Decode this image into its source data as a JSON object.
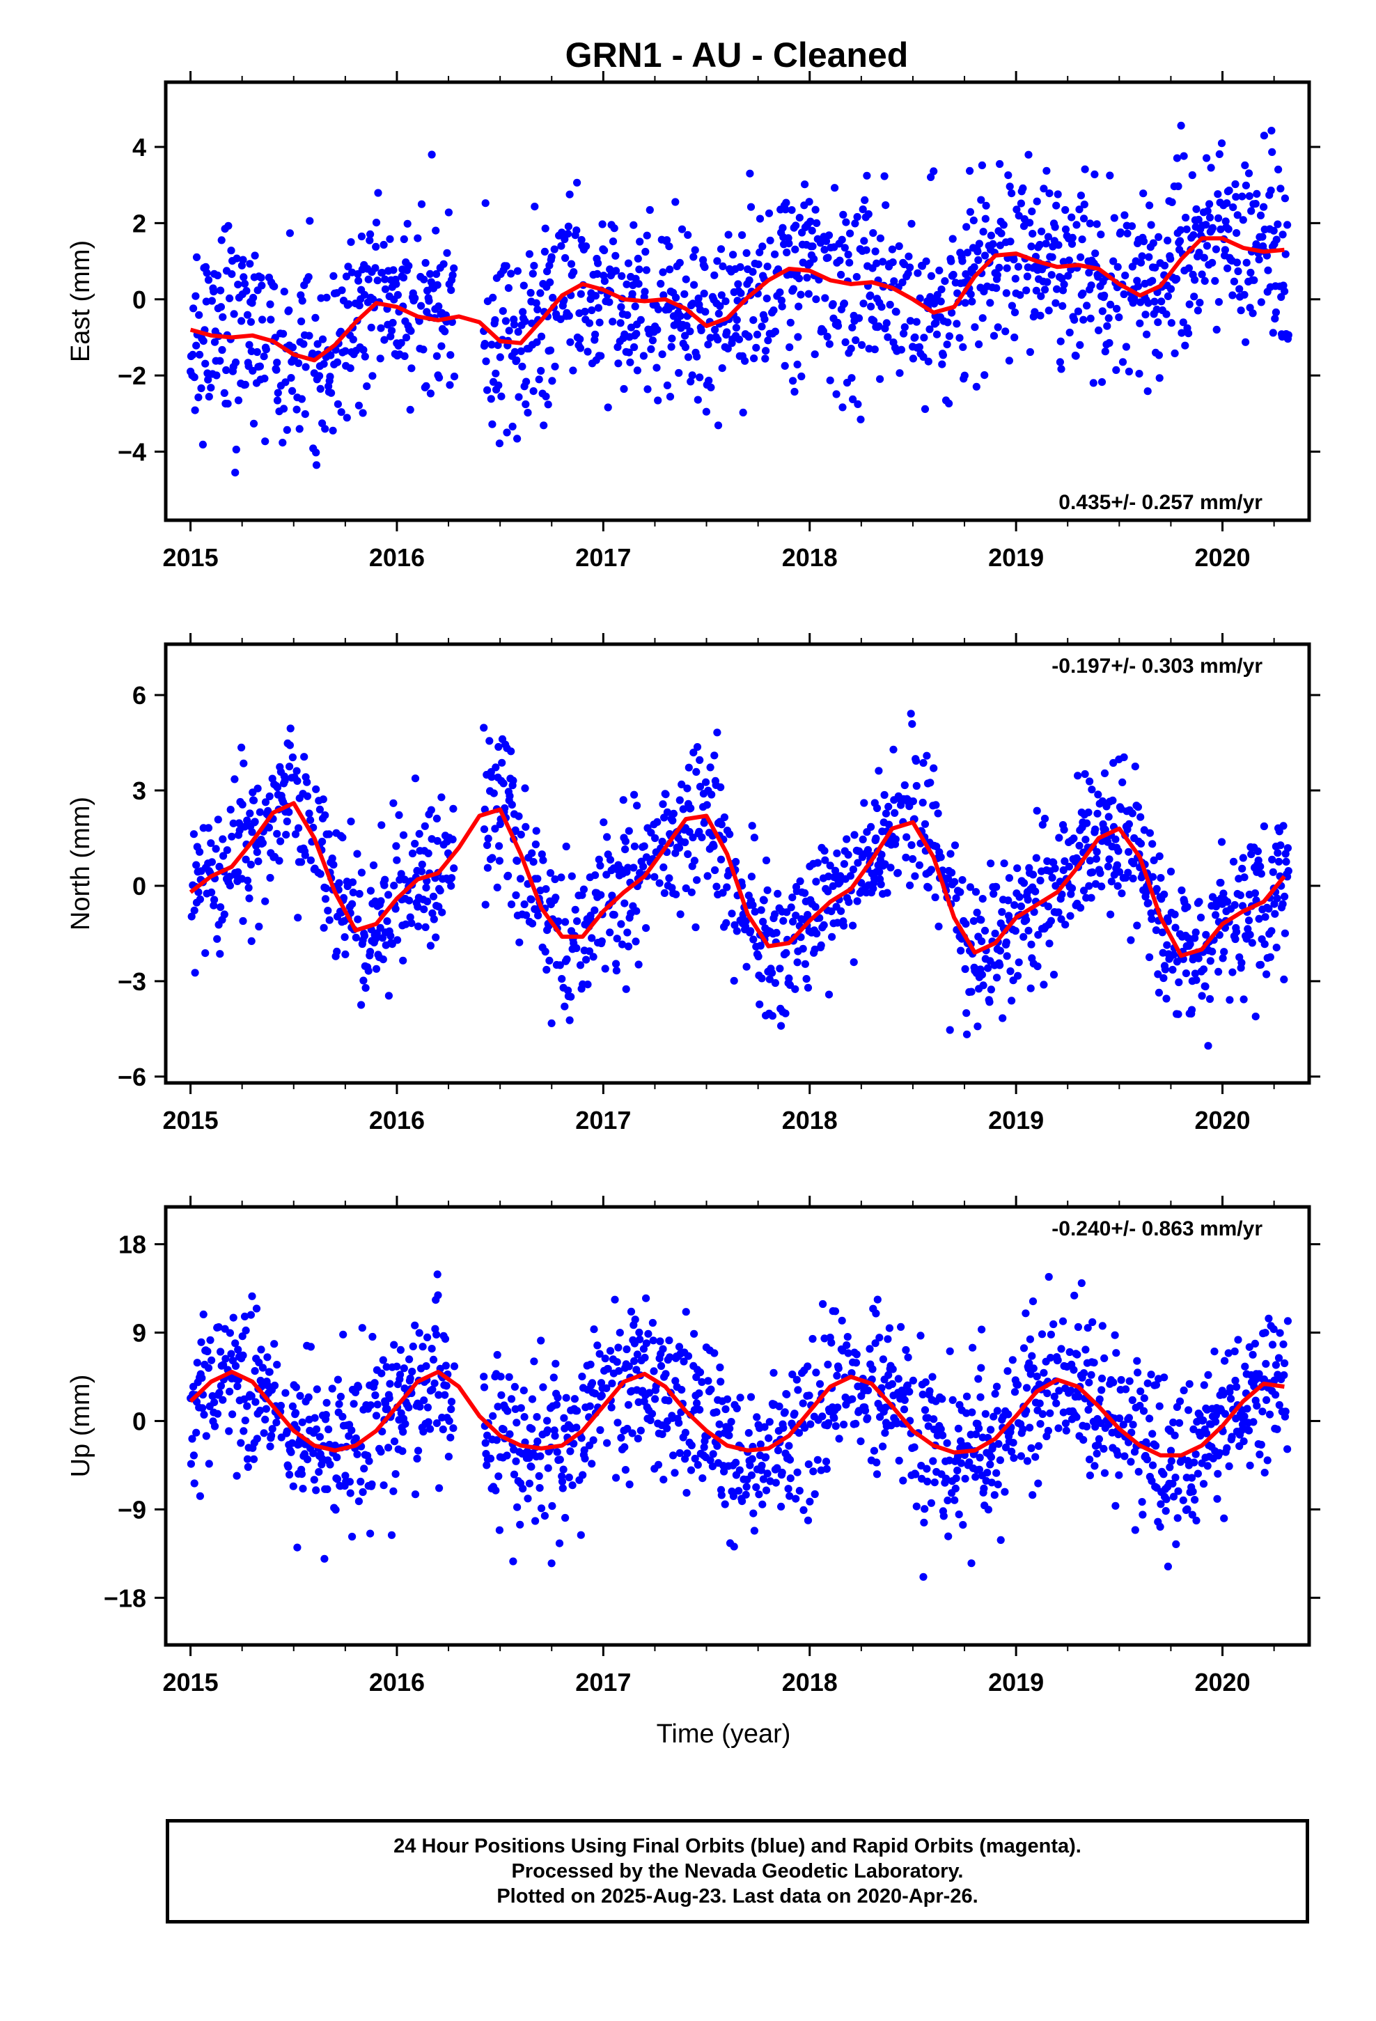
{
  "title": "GRN1  - AU - Cleaned",
  "colors": {
    "points": "#0000ff",
    "fit": "#ff0000",
    "frame": "#000000"
  },
  "footer": {
    "line1": "24 Hour Positions Using Final Orbits (blue) and Rapid Orbits (magenta).",
    "line2": "Processed by the Nevada Geodetic Laboratory.",
    "line3": "Plotted on 2025-Aug-23. Last data on 2020-Apr-26."
  },
  "chart_data": [
    {
      "type": "scatter",
      "ylabel": "East (mm)",
      "xlabel": "",
      "xlim": [
        2014.88,
        2020.42
      ],
      "ylim": [
        -5.8,
        5.7
      ],
      "xticks": [
        2015,
        2016,
        2017,
        2018,
        2019,
        2020
      ],
      "yticks": [
        4,
        2,
        0,
        -2,
        -4
      ],
      "ytick_labels": [
        "4",
        "2",
        "0",
        "−2",
        "−4"
      ],
      "rate": "0.435+/- 0.257 mm/yr",
      "rate_position": "bottom-right",
      "data_start": 2015.0,
      "data_end": 2020.32,
      "fit": {
        "x": [
          2015.0,
          2015.1,
          2015.2,
          2015.3,
          2015.4,
          2015.5,
          2015.6,
          2015.7,
          2015.8,
          2015.9,
          2016.0,
          2016.1,
          2016.2,
          2016.3,
          2016.4,
          2016.5,
          2016.6,
          2016.7,
          2016.8,
          2016.9,
          2017.0,
          2017.1,
          2017.2,
          2017.3,
          2017.4,
          2017.5,
          2017.6,
          2017.7,
          2017.8,
          2017.9,
          2018.0,
          2018.1,
          2018.2,
          2018.3,
          2018.4,
          2018.5,
          2018.6,
          2018.7,
          2018.8,
          2018.9,
          2019.0,
          2019.1,
          2019.2,
          2019.3,
          2019.4,
          2019.5,
          2019.6,
          2019.7,
          2019.8,
          2019.9,
          2020.0,
          2020.1,
          2020.2,
          2020.3
        ],
        "y": [
          -0.8,
          -0.95,
          -1.0,
          -0.95,
          -1.1,
          -1.45,
          -1.6,
          -1.2,
          -0.6,
          -0.1,
          -0.2,
          -0.45,
          -0.55,
          -0.45,
          -0.6,
          -1.1,
          -1.15,
          -0.55,
          0.1,
          0.4,
          0.25,
          0.0,
          -0.05,
          0.0,
          -0.25,
          -0.7,
          -0.5,
          0.05,
          0.5,
          0.8,
          0.75,
          0.5,
          0.4,
          0.45,
          0.3,
          0.0,
          -0.35,
          -0.2,
          0.6,
          1.15,
          1.2,
          1.0,
          0.85,
          0.9,
          0.8,
          0.4,
          0.1,
          0.35,
          1.05,
          1.6,
          1.6,
          1.35,
          1.25,
          1.3
        ]
      },
      "scatter_sd": 1.25,
      "seed": 11
    },
    {
      "type": "scatter",
      "ylabel": "North (mm)",
      "xlabel": "",
      "xlim": [
        2014.88,
        2020.42
      ],
      "ylim": [
        -6.2,
        7.6
      ],
      "xticks": [
        2015,
        2016,
        2017,
        2018,
        2019,
        2020
      ],
      "yticks": [
        6,
        3,
        0,
        -3,
        -6
      ],
      "ytick_labels": [
        "6",
        "3",
        "0",
        "−3",
        "−6"
      ],
      "rate": "-0.197+/- 0.303 mm/yr",
      "rate_position": "top-right",
      "data_start": 2015.0,
      "data_end": 2020.32,
      "fit": {
        "x": [
          2015.0,
          2015.1,
          2015.2,
          2015.3,
          2015.4,
          2015.5,
          2015.6,
          2015.7,
          2015.8,
          2015.9,
          2016.0,
          2016.1,
          2016.2,
          2016.3,
          2016.4,
          2016.5,
          2016.6,
          2016.7,
          2016.8,
          2016.9,
          2017.0,
          2017.1,
          2017.2,
          2017.3,
          2017.4,
          2017.5,
          2017.6,
          2017.7,
          2017.8,
          2017.9,
          2018.0,
          2018.1,
          2018.2,
          2018.3,
          2018.4,
          2018.5,
          2018.6,
          2018.7,
          2018.8,
          2018.9,
          2019.0,
          2019.1,
          2019.2,
          2019.3,
          2019.4,
          2019.5,
          2019.6,
          2019.7,
          2019.8,
          2019.9,
          2020.0,
          2020.1,
          2020.2,
          2020.3
        ],
        "y": [
          -0.2,
          0.3,
          0.6,
          1.4,
          2.3,
          2.6,
          1.5,
          -0.2,
          -1.4,
          -1.2,
          -0.4,
          0.2,
          0.4,
          1.2,
          2.2,
          2.4,
          1.0,
          -0.7,
          -1.6,
          -1.6,
          -0.8,
          -0.2,
          0.3,
          1.2,
          2.1,
          2.2,
          1.0,
          -0.9,
          -1.9,
          -1.8,
          -1.1,
          -0.5,
          -0.1,
          0.8,
          1.8,
          2.0,
          0.9,
          -1.0,
          -2.1,
          -1.8,
          -1.0,
          -0.6,
          -0.2,
          0.6,
          1.5,
          1.8,
          0.9,
          -1.0,
          -2.2,
          -2.0,
          -1.2,
          -0.8,
          -0.5,
          0.3
        ]
      },
      "scatter_sd": 1.15,
      "seed": 23
    },
    {
      "type": "scatter",
      "ylabel": "Up (mm)",
      "xlabel": "Time (year)",
      "xlim": [
        2014.88,
        2020.42
      ],
      "ylim": [
        -22.8,
        21.8
      ],
      "xticks": [
        2015,
        2016,
        2017,
        2018,
        2019,
        2020
      ],
      "yticks": [
        18,
        9,
        0,
        -9,
        -18
      ],
      "ytick_labels": [
        "18",
        "9",
        "0",
        "−9",
        "−18"
      ],
      "rate": "-0.240+/- 0.863 mm/yr",
      "rate_position": "top-right",
      "data_start": 2015.0,
      "data_end": 2020.32,
      "fit": {
        "x": [
          2015.0,
          2015.1,
          2015.2,
          2015.3,
          2015.4,
          2015.5,
          2015.6,
          2015.7,
          2015.8,
          2015.9,
          2016.0,
          2016.1,
          2016.2,
          2016.3,
          2016.4,
          2016.5,
          2016.6,
          2016.7,
          2016.8,
          2016.9,
          2017.0,
          2017.1,
          2017.2,
          2017.3,
          2017.4,
          2017.5,
          2017.6,
          2017.7,
          2017.8,
          2017.9,
          2018.0,
          2018.1,
          2018.2,
          2018.3,
          2018.4,
          2018.5,
          2018.6,
          2018.7,
          2018.8,
          2018.9,
          2019.0,
          2019.1,
          2019.2,
          2019.3,
          2019.4,
          2019.5,
          2019.6,
          2019.7,
          2019.8,
          2019.9,
          2020.0,
          2020.1,
          2020.2,
          2020.3
        ],
        "y": [
          2.0,
          4.0,
          5.0,
          4.0,
          1.5,
          -1.0,
          -2.5,
          -3.0,
          -2.5,
          -1.0,
          1.5,
          4.0,
          5.0,
          3.5,
          0.5,
          -1.5,
          -2.5,
          -2.8,
          -2.5,
          -1.0,
          1.5,
          4.0,
          4.8,
          3.5,
          1.0,
          -1.0,
          -2.5,
          -3.0,
          -2.8,
          -1.5,
          1.0,
          3.5,
          4.5,
          3.8,
          1.5,
          -1.0,
          -2.5,
          -3.2,
          -3.0,
          -1.8,
          0.5,
          3.0,
          4.2,
          3.5,
          1.5,
          -0.8,
          -2.5,
          -3.5,
          -3.5,
          -2.5,
          -0.5,
          2.0,
          3.8,
          3.5
        ]
      },
      "scatter_sd": 4.2,
      "seed": 37
    }
  ]
}
